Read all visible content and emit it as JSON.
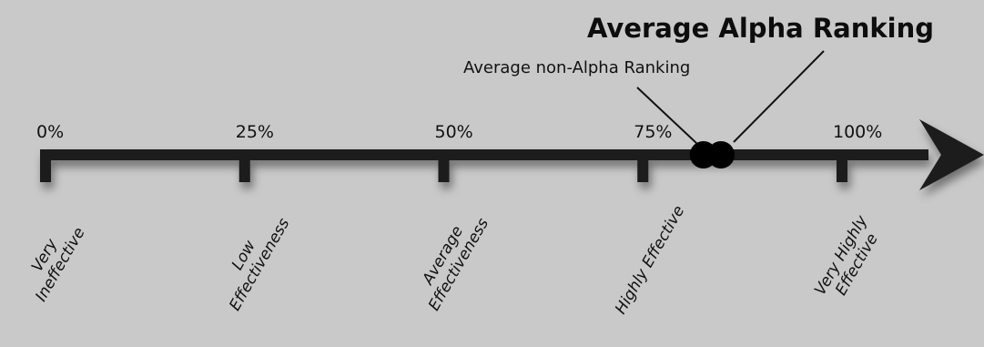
{
  "chart_data": {
    "type": "scale",
    "scale_min": 0,
    "scale_max": 100,
    "ticks": [
      {
        "value": 0,
        "label": "0%",
        "category": [
          "Very",
          "Ineffective"
        ]
      },
      {
        "value": 25,
        "label": "25%",
        "category": [
          "Low",
          "Effectiveness"
        ]
      },
      {
        "value": 50,
        "label": "50%",
        "category": [
          "Average",
          "Effectiveness"
        ]
      },
      {
        "value": 75,
        "label": "75%",
        "category": [
          "Highly Effective"
        ]
      },
      {
        "value": 100,
        "label": "100%",
        "category": [
          "Very Highly",
          "Effective"
        ]
      }
    ],
    "markers": [
      {
        "name": "Average non-Alpha Ranking",
        "value": 82.6
      },
      {
        "name": "Average Alpha Ranking",
        "value": 84.8
      }
    ]
  },
  "colors": {
    "background": "#c9c9c9",
    "axis": "#1a1a1a",
    "marker": "#000000",
    "text": "#111111"
  }
}
